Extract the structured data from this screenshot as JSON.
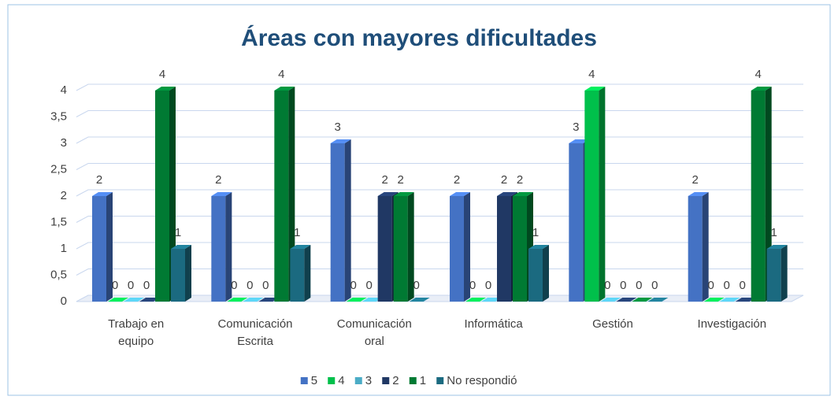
{
  "chart_data": {
    "type": "bar3d",
    "title": "Áreas con mayores dificultades",
    "categories": [
      "Trabajo en equipo",
      "Comunicación Escrita",
      "Comunicación oral",
      "Informática",
      "Gestión",
      "Investigación"
    ],
    "series": [
      {
        "name": "5",
        "color": "#4472c4",
        "values": [
          2,
          2,
          3,
          2,
          3,
          2
        ]
      },
      {
        "name": "4",
        "color": "#00c04b",
        "values": [
          0,
          0,
          0,
          0,
          4,
          0
        ]
      },
      {
        "name": "3",
        "color": "#4bacc6",
        "values": [
          0,
          0,
          0,
          0,
          0,
          0
        ]
      },
      {
        "name": "2",
        "color": "#203864",
        "values": [
          0,
          0,
          2,
          2,
          0,
          0
        ]
      },
      {
        "name": "1",
        "color": "#007a33",
        "values": [
          4,
          4,
          2,
          2,
          0,
          4
        ]
      },
      {
        "name": "No respondió",
        "color": "#1b6a80",
        "values": [
          1,
          1,
          0,
          1,
          0,
          1
        ]
      }
    ],
    "ylim": [
      0,
      4
    ],
    "yticks": [
      0,
      {
        "value": 0.5,
        "label": "0,5"
      },
      1,
      {
        "value": 1.5,
        "label": "1,5"
      },
      2,
      {
        "value": 2.5,
        "label": "2,5"
      },
      3,
      {
        "value": 3.5,
        "label": "3,5"
      },
      4
    ],
    "grid": true,
    "legend": "bottom"
  }
}
